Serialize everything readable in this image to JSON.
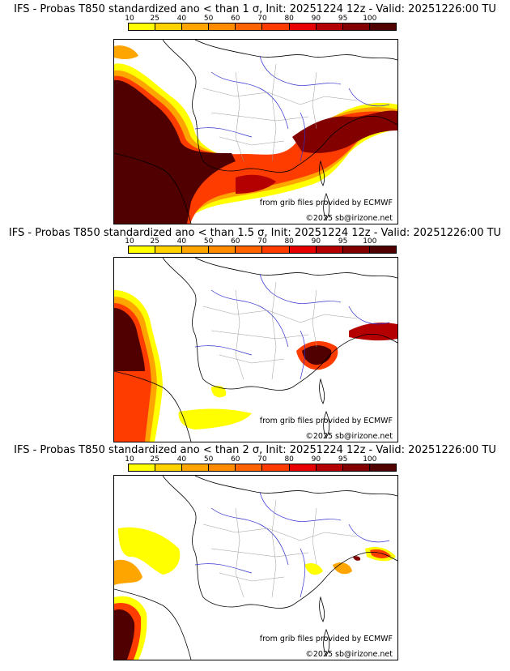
{
  "colorbar": {
    "labels": [
      "10",
      "25",
      "40",
      "50",
      "60",
      "70",
      "80",
      "90",
      "95",
      "100"
    ],
    "colors": [
      "#ffff00",
      "#ffd200",
      "#ffa500",
      "#ff8c00",
      "#ff6400",
      "#ff3c00",
      "#e60000",
      "#b40000",
      "#820000",
      "#500000"
    ]
  },
  "panels": [
    {
      "title": "IFS - Probas T850  standardized ano < than 1 σ, Init: 20251224 12z - Valid: 20251226:00 TU",
      "credit_source": "from grib files provided by ECMWF",
      "credit_copyright": "©2025 sb@irizone.net"
    },
    {
      "title": "IFS - Probas T850  standardized ano < than 1.5 σ, Init: 20251224 12z - Valid: 20251226:00 TU",
      "credit_source": "from grib files provided by ECMWF",
      "credit_copyright": "©2025 sb@irizone.net"
    },
    {
      "title": "IFS - Probas T850  standardized ano < than 2 σ, Init: 20251224 12z - Valid: 20251226:00 TU",
      "credit_source": "from grib files provided by ECMWF",
      "credit_copyright": "©2025 sb@irizone.net"
    }
  ]
}
